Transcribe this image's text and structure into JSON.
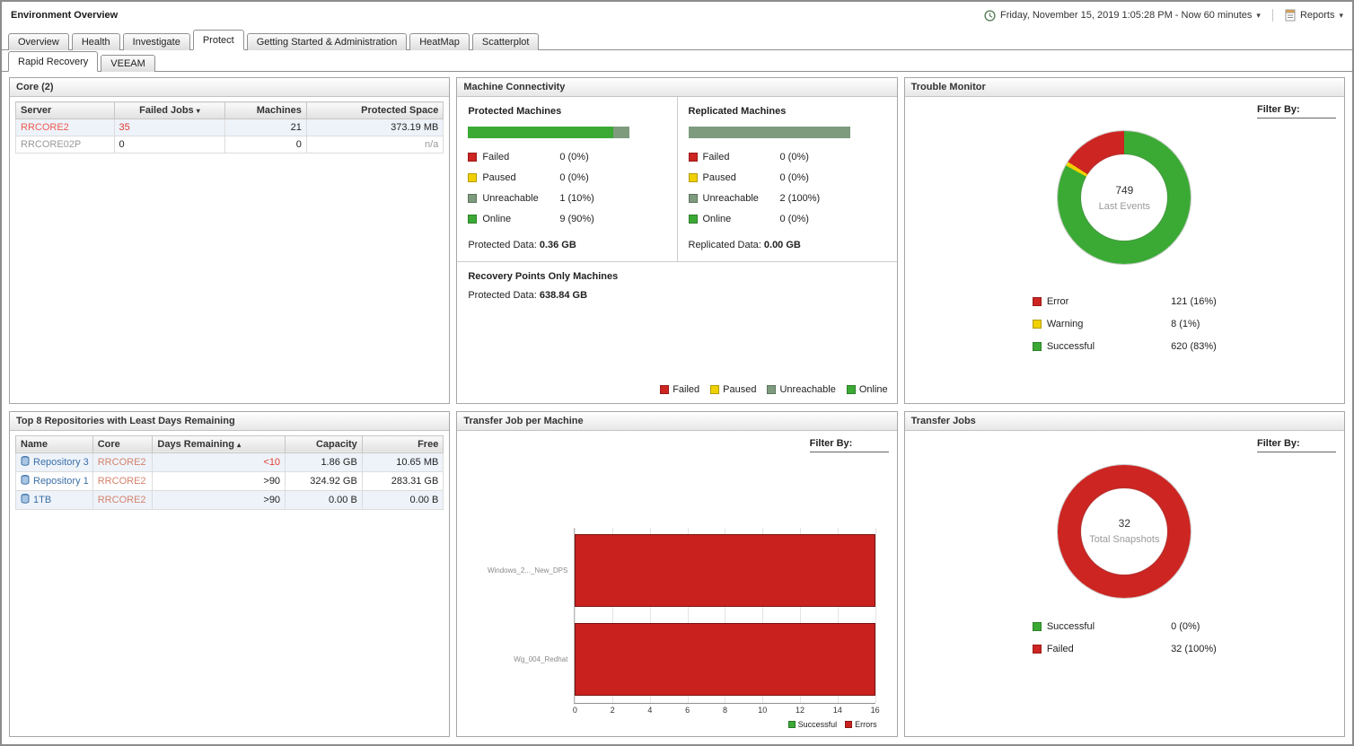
{
  "header": {
    "title": "Environment Overview",
    "time_range": "Friday, November 15, 2019 1:05:28 PM - Now 60 minutes",
    "reports_label": "Reports"
  },
  "tabs": [
    "Overview",
    "Health",
    "Investigate",
    "Protect",
    "Getting Started & Administration",
    "HeatMap",
    "Scatterplot"
  ],
  "active_tab": "Protect",
  "subtabs": [
    "Rapid Recovery",
    "VEEAM"
  ],
  "active_subtab": "Rapid Recovery",
  "core": {
    "title": "Core (2)",
    "columns": {
      "server": "Server",
      "failed_jobs": "Failed Jobs",
      "machines": "Machines",
      "protected_space": "Protected Space"
    },
    "sort_indicator": "▾",
    "rows": [
      {
        "server": "RRCORE2",
        "failed_jobs": "35",
        "machines": "21",
        "protected_space": "373.19 MB"
      },
      {
        "server": "RRCORE02P",
        "failed_jobs": "0",
        "machines": "0",
        "protected_space": "n/a"
      }
    ]
  },
  "machine_connectivity": {
    "title": "Machine Connectivity",
    "protected": {
      "heading": "Protected Machines",
      "bar": [
        {
          "color": "#3baa35",
          "pct": 90
        },
        {
          "color": "#7e9b7e",
          "pct": 10
        }
      ],
      "legend": [
        {
          "label": "Failed",
          "value": "0 (0%)",
          "color": "#cc2522"
        },
        {
          "label": "Paused",
          "value": "0 (0%)",
          "color": "#f0d000"
        },
        {
          "label": "Unreachable",
          "value": "1 (10%)",
          "color": "#7e9b7e"
        },
        {
          "label": "Online",
          "value": "9 (90%)",
          "color": "#3baa35"
        }
      ],
      "data_label": "Protected Data:",
      "data_value": "0.36 GB"
    },
    "replicated": {
      "heading": "Replicated Machines",
      "bar": [
        {
          "color": "#7e9b7e",
          "pct": 100
        }
      ],
      "legend": [
        {
          "label": "Failed",
          "value": "0 (0%)",
          "color": "#cc2522"
        },
        {
          "label": "Paused",
          "value": "0 (0%)",
          "color": "#f0d000"
        },
        {
          "label": "Unreachable",
          "value": "2 (100%)",
          "color": "#7e9b7e"
        },
        {
          "label": "Online",
          "value": "0 (0%)",
          "color": "#3baa35"
        }
      ],
      "data_label": "Replicated Data:",
      "data_value": "0.00 GB"
    },
    "recovery_points": {
      "heading": "Recovery Points Only Machines",
      "data_label": "Protected Data:",
      "data_value": "638.84 GB"
    },
    "footer_legend": [
      {
        "label": "Failed",
        "color": "#cc2522"
      },
      {
        "label": "Paused",
        "color": "#f0d000"
      },
      {
        "label": "Unreachable",
        "color": "#7e9b7e"
      },
      {
        "label": "Online",
        "color": "#3baa35"
      }
    ]
  },
  "trouble_monitor": {
    "title": "Trouble Monitor",
    "filter_label": "Filter By:",
    "center_value": "749",
    "center_label": "Last Events",
    "chart_data": {
      "type": "pie",
      "total": 749,
      "slices": [
        {
          "color": "#3baa35",
          "pct": 83
        },
        {
          "color": "#f0d000",
          "pct": 1
        },
        {
          "color": "#cc2522",
          "pct": 16
        }
      ]
    },
    "legend": [
      {
        "label": "Error",
        "value": "121 (16%)",
        "color": "#cc2522"
      },
      {
        "label": "Warning",
        "value": "8 (1%)",
        "color": "#f0d000"
      },
      {
        "label": "Successful",
        "value": "620 (83%)",
        "color": "#3baa35"
      }
    ]
  },
  "repositories": {
    "title": "Top 8 Repositories with Least Days Remaining",
    "columns": {
      "name": "Name",
      "core": "Core",
      "days": "Days Remaining",
      "capacity": "Capacity",
      "free": "Free"
    },
    "sort_indicator": "▴",
    "rows": [
      {
        "name": "Repository 3",
        "core": "RRCORE2",
        "days": "<10",
        "capacity": "1.86 GB",
        "free": "10.65 MB"
      },
      {
        "name": "Repository 1",
        "core": "RRCORE2",
        "days": ">90",
        "capacity": "324.92 GB",
        "free": "283.31 GB"
      },
      {
        "name": "1TB",
        "core": "RRCORE2",
        "days": ">90",
        "capacity": "0.00 B",
        "free": "0.00 B"
      }
    ]
  },
  "transfer_job_per_machine": {
    "title": "Transfer Job per Machine",
    "filter_label": "Filter By:",
    "chart_data": {
      "type": "bar",
      "orientation": "horizontal",
      "categories": [
        "Windows_2..._New_DPS",
        "Wg_004_Redhat"
      ],
      "series": [
        {
          "name": "Errors",
          "color": "#c9211e",
          "values": [
            16,
            16
          ]
        },
        {
          "name": "Successful",
          "color": "#3baa35",
          "values": [
            0,
            0
          ]
        }
      ],
      "xticks": [
        "0",
        "2",
        "4",
        "6",
        "8",
        "10",
        "12",
        "14",
        "16"
      ],
      "xmax": 16
    },
    "legend": [
      {
        "label": "Successful",
        "color": "#3baa35"
      },
      {
        "label": "Errors",
        "color": "#c9211e"
      }
    ]
  },
  "transfer_jobs": {
    "title": "Transfer Jobs",
    "filter_label": "Filter By:",
    "center_value": "32",
    "center_label": "Total Snapshots",
    "chart_data": {
      "type": "pie",
      "total": 32,
      "slices": [
        {
          "color": "#cc2522",
          "pct": 100
        }
      ]
    },
    "legend": [
      {
        "label": "Successful",
        "value": "0 (0%)",
        "color": "#3baa35"
      },
      {
        "label": "Failed",
        "value": "32 (100%)",
        "color": "#cc2522"
      }
    ]
  }
}
